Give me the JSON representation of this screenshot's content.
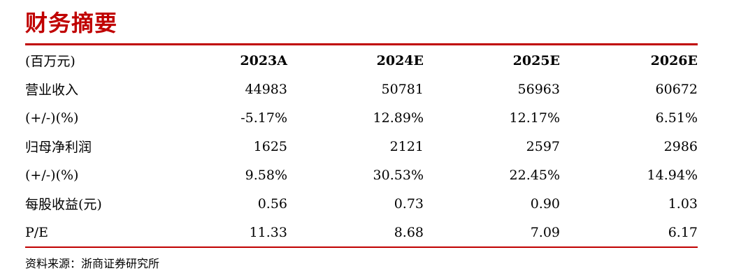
{
  "title": "财务摘要",
  "table": {
    "headers": [
      "(百万元)",
      "2023A",
      "2024E",
      "2025E",
      "2026E"
    ],
    "rows": [
      {
        "label": "营业收入",
        "values": [
          "44983",
          "50781",
          "56963",
          "60672"
        ]
      },
      {
        "label": "(+/-)(%)",
        "values": [
          "-5.17%",
          "12.89%",
          "12.17%",
          "6.51%"
        ]
      },
      {
        "label": "归母净利润",
        "values": [
          "1625",
          "2121",
          "2597",
          "2986"
        ]
      },
      {
        "label": "(+/-)(%)",
        "values": [
          "9.58%",
          "30.53%",
          "22.45%",
          "14.94%"
        ]
      },
      {
        "label": "每股收益(元)",
        "values": [
          "0.56",
          "0.73",
          "0.90",
          "1.03"
        ]
      },
      {
        "label": "P/E",
        "values": [
          "11.33",
          "8.68",
          "7.09",
          "6.17"
        ]
      }
    ]
  },
  "source": "资料来源：浙商证券研究所",
  "colors": {
    "accent": "#c00000",
    "text": "#000000"
  }
}
